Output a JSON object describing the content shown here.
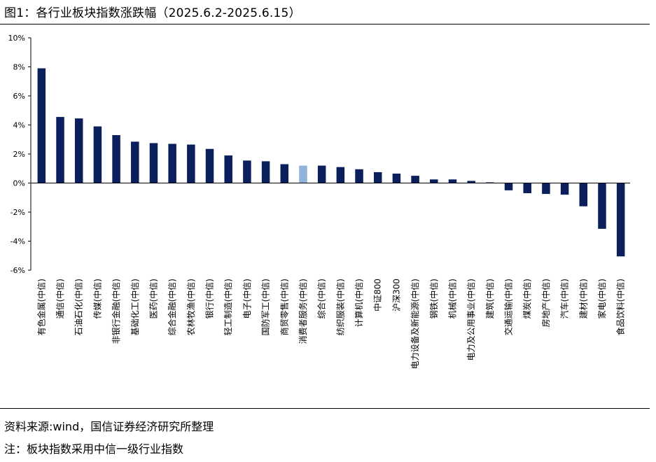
{
  "figure": {
    "title": "图1：各行业板块指数涨跌幅（2025.6.2-2025.6.15）",
    "source": "资料来源:wind，国信证券经济研究所整理",
    "note": "注：板块指数采用中信一级行业指数"
  },
  "chart_data": {
    "type": "bar",
    "categories": [
      "有色金属(中信)",
      "通信(中信)",
      "石油石化(中信)",
      "传媒(中信)",
      "非银行金融(中信)",
      "基础化工(中信)",
      "医药(中信)",
      "综合金融(中信)",
      "农林牧渔(中信)",
      "银行(中信)",
      "轻工制造(中信)",
      "电子(中信)",
      "国防军工(中信)",
      "商贸零售(中信)",
      "消费者服务(中信)",
      "综合(中信)",
      "纺织服装(中信)",
      "计算机(中信)",
      "中证800",
      "沪深300",
      "电力设备及新能源(中信)",
      "钢铁(中信)",
      "机械(中信)",
      "电力及公用事业(中信)",
      "建筑(中信)",
      "交通运输(中信)",
      "煤炭(中信)",
      "房地产(中信)",
      "汽车(中信)",
      "建材(中信)",
      "家电(中信)",
      "食品饮料(中信)"
    ],
    "values": [
      7.9,
      4.55,
      4.45,
      3.9,
      3.3,
      2.85,
      2.75,
      2.7,
      2.65,
      2.35,
      1.9,
      1.55,
      1.5,
      1.3,
      1.2,
      1.2,
      1.1,
      0.95,
      0.75,
      0.65,
      0.5,
      0.25,
      0.25,
      0.15,
      0.05,
      -0.5,
      -0.7,
      -0.75,
      -0.8,
      -1.6,
      -3.15,
      -5.05
    ],
    "highlight_index": 14,
    "colors": {
      "bar": "#0a1f5c",
      "highlight": "#8fb3d9"
    },
    "ylim": [
      -6,
      10
    ],
    "yticks": [
      -6,
      -4,
      -2,
      0,
      2,
      4,
      6,
      8,
      10
    ],
    "ytick_labels": [
      "-6%",
      "-4%",
      "-2%",
      "0%",
      "2%",
      "4%",
      "6%",
      "8%",
      "10%"
    ],
    "grid": false,
    "legend": "none",
    "xlabel": "",
    "ylabel": ""
  }
}
